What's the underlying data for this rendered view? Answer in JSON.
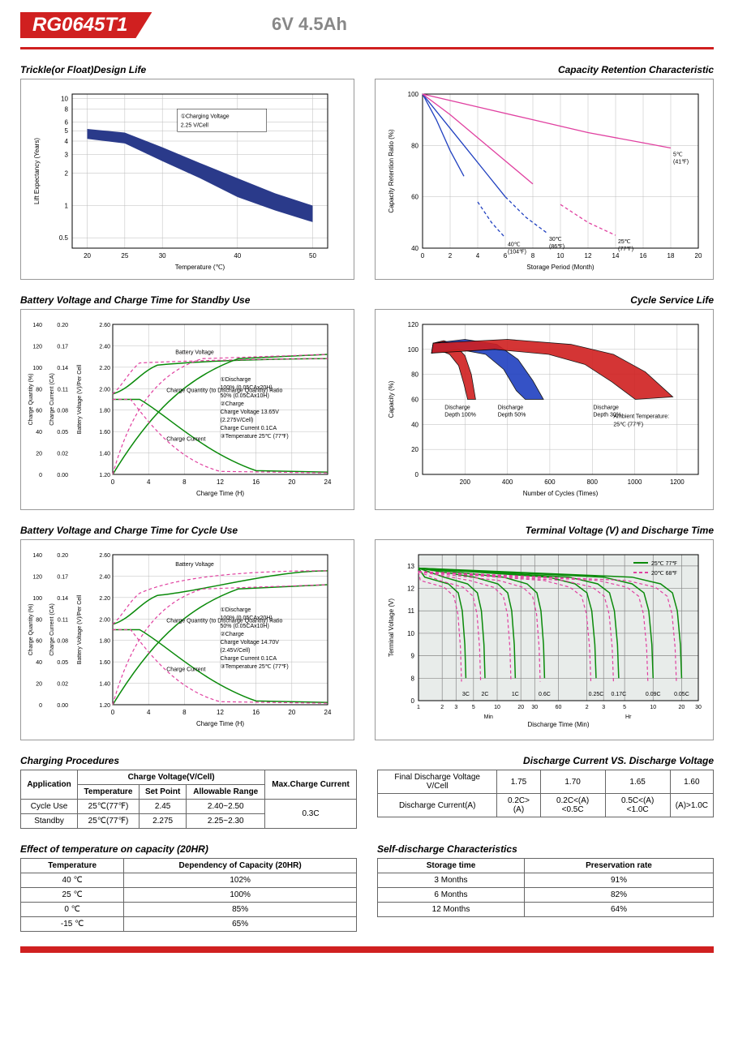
{
  "header": {
    "model": "RG0645T1",
    "spec": "6V  4.5Ah"
  },
  "charts": {
    "trickle": {
      "title": "Trickle(or Float)Design Life",
      "xlabel": "Temperature (℃)",
      "ylabel": "Lift Expectancy (Years)",
      "annotation": "①Charging Voltage\n2.25 V/Cell",
      "x_ticks": [
        20,
        25,
        30,
        40,
        50
      ],
      "y_ticks": [
        0.5,
        1,
        2,
        3,
        4,
        5,
        6,
        8,
        10
      ],
      "band_color": "#2a3a8a",
      "band_upper": [
        [
          20,
          5.2
        ],
        [
          25,
          4.8
        ],
        [
          30,
          3.5
        ],
        [
          35,
          2.5
        ],
        [
          40,
          1.8
        ],
        [
          45,
          1.3
        ],
        [
          50,
          1.0
        ]
      ],
      "band_lower": [
        [
          20,
          4.2
        ],
        [
          25,
          3.8
        ],
        [
          30,
          2.6
        ],
        [
          35,
          1.8
        ],
        [
          40,
          1.2
        ],
        [
          45,
          0.9
        ],
        [
          50,
          0.7
        ]
      ]
    },
    "retention": {
      "title": "Capacity Retention Characteristic",
      "xlabel": "Storage Period (Month)",
      "ylabel": "Capacity Retention Ratio (%)",
      "x_ticks": [
        0,
        2,
        4,
        6,
        8,
        10,
        12,
        14,
        16,
        18,
        20
      ],
      "y_ticks": [
        40,
        60,
        80,
        100
      ],
      "curves": [
        {
          "label": "40℃\n(104℉)",
          "color": "#2040c0",
          "pts": [
            [
              0,
              100
            ],
            [
              1,
              90
            ],
            [
              2,
              78
            ],
            [
              3,
              68
            ],
            [
              4,
              58
            ],
            [
              5,
              50
            ],
            [
              6,
              44
            ]
          ]
        },
        {
          "label": "30℃\n(86℉)",
          "color": "#2040c0",
          "pts": [
            [
              0,
              100
            ],
            [
              1.5,
              90
            ],
            [
              3,
              80
            ],
            [
              4.5,
              70
            ],
            [
              6,
              60
            ],
            [
              7.5,
              52
            ],
            [
              9,
              46
            ]
          ]
        },
        {
          "label": "25℃\n(77℉)",
          "color": "#e040a0",
          "pts": [
            [
              0,
              100
            ],
            [
              2,
              92
            ],
            [
              4,
              83
            ],
            [
              6,
              74
            ],
            [
              8,
              65
            ],
            [
              10,
              57
            ],
            [
              12,
              50
            ],
            [
              14,
              45
            ]
          ]
        },
        {
          "label": "5℃\n(41℉)",
          "color": "#e040a0",
          "pts": [
            [
              0,
              100
            ],
            [
              4,
              95
            ],
            [
              8,
              90
            ],
            [
              12,
              85
            ],
            [
              16,
              81
            ],
            [
              18,
              79
            ]
          ]
        }
      ]
    },
    "standby": {
      "title": "Battery Voltage and Charge Time for Standby Use",
      "xlabel": "Charge Time (H)",
      "y1": "Charge Quantity (%)",
      "y2": "Charge Current (CA)",
      "y3": "Battery Voltage (V)/Per Cell",
      "x_ticks": [
        0,
        4,
        8,
        12,
        16,
        20,
        24
      ],
      "notes": [
        "①Discharge",
        "  100% (0.05CAx20H)",
        "  50% (0.05CAx10H)",
        "②Charge",
        "  Charge Voltage 13.65V",
        "  (2.275V/Cell)",
        "  Charge Current 0.1CA",
        "③Temperature 25℃ (77℉)"
      ],
      "bv_label": "Battery Voltage",
      "cq_label": "Charge Quantity (to Discharge Quantity) Ratio",
      "cc_label": "Charge Current"
    },
    "cycle_life": {
      "title": "Cycle Service Life",
      "xlabel": "Number of Cycles (Times)",
      "ylabel": "Capacity (%)",
      "x_ticks": [
        200,
        400,
        600,
        800,
        1000,
        1200
      ],
      "y_ticks": [
        0,
        20,
        40,
        60,
        80,
        100,
        120
      ],
      "ambient": "Ambient Temperature:\n25℃ (77℉)",
      "regions": [
        {
          "label": "Discharge\nDepth 100%",
          "color": "#d02020",
          "pts": [
            [
              50,
              105
            ],
            [
              100,
              107
            ],
            [
              150,
              104
            ],
            [
              200,
              95
            ],
            [
              230,
              80
            ],
            [
              250,
              60
            ]
          ]
        },
        {
          "label": "Discharge\nDepth 50%",
          "color": "#2040c0",
          "pts": [
            [
              50,
              105
            ],
            [
              200,
              108
            ],
            [
              350,
              104
            ],
            [
              450,
              92
            ],
            [
              520,
              75
            ],
            [
              570,
              60
            ]
          ]
        },
        {
          "label": "Discharge\nDepth 30%",
          "color": "#d02020",
          "pts": [
            [
              50,
              105
            ],
            [
              400,
              108
            ],
            [
              700,
              104
            ],
            [
              900,
              96
            ],
            [
              1050,
              82
            ],
            [
              1180,
              62
            ]
          ]
        }
      ]
    },
    "cycle_charge": {
      "title": "Battery Voltage and Charge Time for Cycle Use",
      "xlabel": "Charge Time (H)",
      "notes": [
        "①Discharge",
        "  100% (0.05CAx20H)",
        "  50% (0.05CAx10H)",
        "②Charge",
        "  Charge Voltage 14.70V",
        "  (2.45V/Cell)",
        "  Charge Current 0.1CA",
        "③Temperature 25℃ (77℉)"
      ]
    },
    "terminal": {
      "title": "Terminal Voltage (V) and Discharge Time",
      "xlabel": "Discharge Time (Min)",
      "ylabel": "Terminal Voltage (V)",
      "legend": [
        {
          "c": "#0a8a0a",
          "t": "25℃ 77℉"
        },
        {
          "c": "#e040a0",
          "t": "20℃ 68℉"
        }
      ],
      "rates": [
        "3C",
        "2C",
        "1C",
        "0.6C",
        "0.25C",
        "0.17C",
        "0.09C",
        "0.05C"
      ]
    }
  },
  "tables": {
    "charging_procedures": {
      "title": "Charging Procedures",
      "headers": {
        "app": "Application",
        "cv": "Charge Voltage(V/Cell)",
        "temp": "Temperature",
        "sp": "Set Point",
        "ar": "Allowable Range",
        "max": "Max.Charge Current"
      },
      "rows": [
        {
          "app": "Cycle Use",
          "temp": "25℃(77℉)",
          "sp": "2.45",
          "ar": "2.40~2.50"
        },
        {
          "app": "Standby",
          "temp": "25℃(77℉)",
          "sp": "2.275",
          "ar": "2.25~2.30"
        }
      ],
      "max_current": "0.3C"
    },
    "discharge_vs": {
      "title": "Discharge Current VS. Discharge Voltage",
      "h1": "Final Discharge Voltage V/Cell",
      "h2": "Discharge Current(A)",
      "volt": [
        "1.75",
        "1.70",
        "1.65",
        "1.60"
      ],
      "curr": [
        "0.2C>(A)",
        "0.2C<(A)<0.5C",
        "0.5C<(A)<1.0C",
        "(A)>1.0C"
      ]
    },
    "temp_effect": {
      "title": "Effect of temperature on capacity (20HR)",
      "h1": "Temperature",
      "h2": "Dependency of Capacity (20HR)",
      "rows": [
        [
          "40 ℃",
          "102%"
        ],
        [
          "25 ℃",
          "100%"
        ],
        [
          "0 ℃",
          "85%"
        ],
        [
          "-15 ℃",
          "65%"
        ]
      ]
    },
    "self_discharge": {
      "title": "Self-discharge Characteristics",
      "h1": "Storage time",
      "h2": "Preservation rate",
      "rows": [
        [
          "3 Months",
          "91%"
        ],
        [
          "6 Months",
          "82%"
        ],
        [
          "12 Months",
          "64%"
        ]
      ]
    }
  }
}
